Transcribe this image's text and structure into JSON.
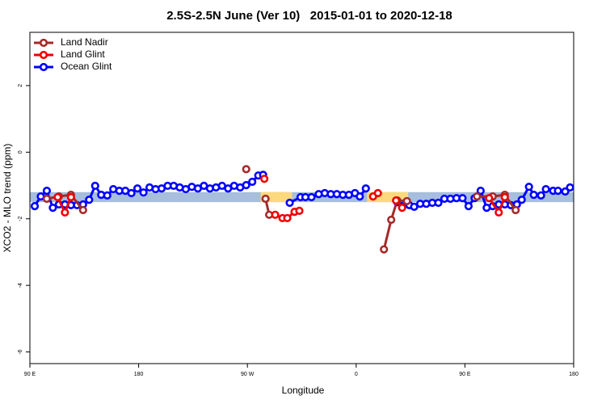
{
  "chart_data": {
    "type": "line",
    "title": "2.5S-2.5N June (Ver 10)   2015-01-01 to 2020-12-18",
    "xlabel": "Longitude",
    "ylabel": "XCO2 - MLO trend (ppm)",
    "xlim": [
      90,
      540
    ],
    "ylim": [
      -6.35,
      3.6
    ],
    "xticks": [
      {
        "value": 90,
        "label": "90 E"
      },
      180,
      {
        "value": 270,
        "label": "90 W"
      },
      {
        "value": 360,
        "label": "0"
      },
      {
        "value": 450,
        "label": "90 E"
      },
      {
        "value": 540,
        "label": "180"
      }
    ],
    "yticks": [
      2,
      0,
      -2,
      -4,
      -6
    ],
    "legend": "upper left",
    "band": {
      "ylim": [
        -1.5,
        -1.2
      ],
      "color": "#a7bedd",
      "highlight_color": "#fcd97c",
      "highlight_x": [
        [
          281,
          307
        ],
        [
          369,
          403
        ]
      ]
    },
    "series": [
      {
        "name": "Ocean Glint",
        "color": "#0000ff",
        "x": [
          94,
          99,
          104,
          109,
          114,
          119,
          124,
          129,
          134,
          139,
          144,
          149,
          154,
          159,
          164,
          169,
          174,
          179,
          184,
          189,
          194,
          199,
          204,
          209,
          214,
          219,
          224,
          229,
          234,
          239,
          244,
          249,
          254,
          259,
          264,
          269,
          274,
          279,
          283,
          290,
          305,
          314,
          318,
          323,
          329,
          334,
          339,
          344,
          349,
          354,
          359,
          363,
          368,
          380,
          394,
          404,
          408,
          413,
          418,
          423,
          428,
          433,
          438,
          443,
          448,
          453,
          458,
          463,
          468,
          473,
          478,
          483,
          488,
          493,
          497,
          503,
          507,
          513,
          517,
          523,
          527,
          533,
          537
        ],
        "values": [
          -1.62,
          -1.33,
          -1.16,
          -1.67,
          -1.57,
          -1.57,
          -1.59,
          -1.59,
          -1.57,
          -1.43,
          -1.01,
          -1.28,
          -1.3,
          -1.11,
          -1.16,
          -1.16,
          -1.23,
          -1.09,
          -1.21,
          -1.06,
          -1.11,
          -1.09,
          -1.01,
          -1.01,
          -1.06,
          -1.11,
          -1.04,
          -1.09,
          -1.01,
          -1.09,
          -1.06,
          -1.01,
          -1.09,
          -1.01,
          -1.06,
          -0.99,
          -0.89,
          -0.7,
          -0.68,
          null,
          -1.52,
          -1.35,
          -1.35,
          -1.35,
          -1.26,
          -1.23,
          -1.26,
          -1.26,
          -1.28,
          -1.28,
          -1.23,
          -1.33,
          -1.09,
          null,
          -1.5,
          -1.59,
          -1.64,
          -1.55,
          -1.55,
          -1.52,
          -1.52,
          -1.4,
          -1.4,
          -1.38,
          -1.38,
          -1.62,
          -1.38,
          -1.16,
          -1.67,
          -1.62,
          -1.57,
          -1.57,
          -1.59,
          -1.57,
          -1.43,
          -1.04,
          -1.28,
          -1.3,
          -1.11,
          -1.16,
          -1.16,
          -1.18,
          -1.06
        ]
      },
      {
        "name": "Land Nadir",
        "color": "#a52a2a",
        "x": [
          104,
          114,
          124,
          134,
          200,
          269,
          275,
          285,
          288,
          300,
          383,
          389,
          394,
          402,
          430,
          460,
          473,
          483,
          492
        ],
        "values": [
          -1.4,
          -1.33,
          -1.28,
          -1.74,
          null,
          -0.51,
          null,
          -1.4,
          -1.88,
          null,
          -2.92,
          -2.03,
          -1.45,
          -1.47,
          null,
          -1.33,
          -1.33,
          -1.28,
          -1.74
        ]
      },
      {
        "name": "Land Glint",
        "color": "#ee0000",
        "x": [
          113,
          119,
          124,
          200,
          284,
          290,
          293,
          299,
          303,
          309,
          313,
          340,
          374,
          378,
          385,
          393,
          398,
          440,
          470,
          478,
          483
        ],
        "values": [
          -1.35,
          -1.81,
          -1.35,
          null,
          -0.8,
          null,
          -1.88,
          -1.98,
          -1.98,
          -1.79,
          -1.76,
          null,
          -1.33,
          -1.23,
          null,
          -1.45,
          -1.67,
          null,
          -1.38,
          -1.81,
          -1.35
        ]
      }
    ],
    "legend_order": [
      "Land Nadir",
      "Land Glint",
      "Ocean Glint"
    ]
  }
}
